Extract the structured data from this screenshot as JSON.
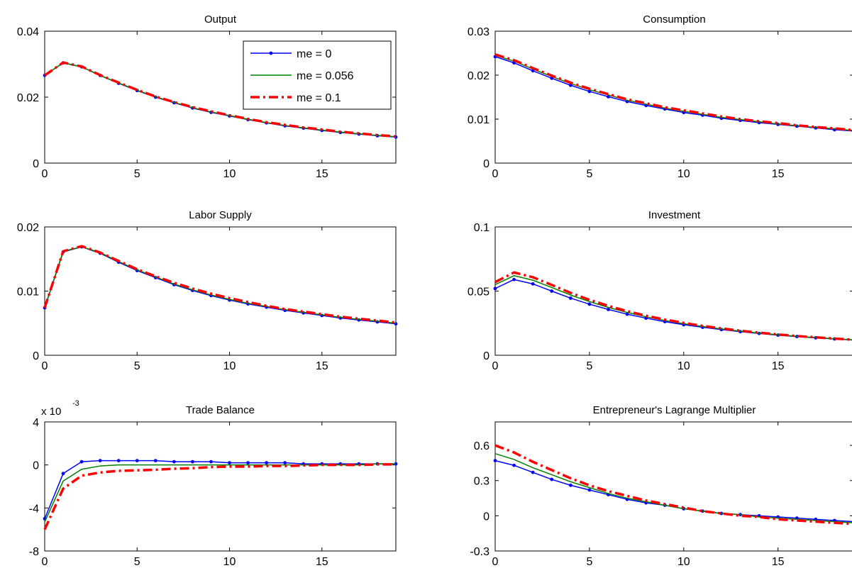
{
  "chart_data": [
    {
      "type": "line",
      "title": "Output",
      "xlabel": "",
      "ylabel": "",
      "xlim": [
        0,
        19
      ],
      "ylim": [
        0,
        0.04
      ],
      "xticks": [
        0,
        5,
        10,
        15
      ],
      "xtick_labels": [
        "0",
        "5",
        "10",
        "15"
      ],
      "yticks": [
        0,
        0.02,
        0.04
      ],
      "ytick_labels": [
        "0",
        "0.02",
        "0.04"
      ],
      "legend": "top-right",
      "x": [
        0,
        1,
        2,
        3,
        4,
        5,
        6,
        7,
        8,
        9,
        10,
        11,
        12,
        13,
        14,
        15,
        16,
        17,
        18,
        19
      ],
      "series": [
        {
          "name": "me = 0",
          "color": "#0000ff",
          "values": [
            0.0266,
            0.0304,
            0.0292,
            0.0266,
            0.0242,
            0.022,
            0.02,
            0.0183,
            0.0167,
            0.0154,
            0.0143,
            0.0132,
            0.0122,
            0.0113,
            0.0106,
            0.0099,
            0.0093,
            0.0088,
            0.0083,
            0.0079
          ]
        },
        {
          "name": "me = 0.056",
          "color": "#008000",
          "values": [
            0.0266,
            0.0304,
            0.0292,
            0.0266,
            0.0243,
            0.0221,
            0.0201,
            0.0184,
            0.0168,
            0.0155,
            0.0144,
            0.0133,
            0.0123,
            0.0114,
            0.0107,
            0.01,
            0.0094,
            0.0089,
            0.0084,
            0.008
          ]
        },
        {
          "name": "me = 0.1",
          "color": "#ff0000",
          "values": [
            0.0266,
            0.0305,
            0.0293,
            0.0267,
            0.0244,
            0.0222,
            0.0202,
            0.0185,
            0.017,
            0.0157,
            0.0145,
            0.0134,
            0.0124,
            0.0116,
            0.0108,
            0.0102,
            0.0095,
            0.009,
            0.0085,
            0.0081
          ]
        }
      ]
    },
    {
      "type": "line",
      "title": "Consumption",
      "xlabel": "",
      "ylabel": "",
      "xlim": [
        0,
        19
      ],
      "ylim": [
        0,
        0.03
      ],
      "xticks": [
        0,
        5,
        10,
        15
      ],
      "xtick_labels": [
        "0",
        "5",
        "10",
        "15"
      ],
      "yticks": [
        0,
        0.01,
        0.02,
        0.03
      ],
      "ytick_labels": [
        "0",
        "0.01",
        "0.02",
        "0.03"
      ],
      "x": [
        0,
        1,
        2,
        3,
        4,
        5,
        6,
        7,
        8,
        9,
        10,
        11,
        12,
        13,
        14,
        15,
        16,
        17,
        18,
        19
      ],
      "series": [
        {
          "color": "#0000ff",
          "values": [
            0.0242,
            0.0228,
            0.021,
            0.0193,
            0.0177,
            0.0163,
            0.0151,
            0.014,
            0.0131,
            0.0123,
            0.0115,
            0.0109,
            0.0102,
            0.0097,
            0.0092,
            0.0088,
            0.0084,
            0.008,
            0.0076,
            0.0073
          ]
        },
        {
          "color": "#008000",
          "values": [
            0.0245,
            0.0232,
            0.0214,
            0.0197,
            0.0181,
            0.0167,
            0.0155,
            0.0143,
            0.0134,
            0.0125,
            0.0118,
            0.0111,
            0.0104,
            0.0099,
            0.0094,
            0.0089,
            0.0085,
            0.0081,
            0.0078,
            0.0074
          ]
        },
        {
          "color": "#ff0000",
          "values": [
            0.0247,
            0.0234,
            0.0216,
            0.0199,
            0.0183,
            0.0169,
            0.0157,
            0.0145,
            0.0136,
            0.0127,
            0.012,
            0.0113,
            0.0106,
            0.01,
            0.0095,
            0.0091,
            0.0086,
            0.0082,
            0.0079,
            0.0075
          ]
        }
      ]
    },
    {
      "type": "line",
      "title": "Labor Supply",
      "xlabel": "",
      "ylabel": "",
      "xlim": [
        0,
        19
      ],
      "ylim": [
        0,
        0.02
      ],
      "xticks": [
        0,
        5,
        10,
        15
      ],
      "xtick_labels": [
        "0",
        "5",
        "10",
        "15"
      ],
      "yticks": [
        0,
        0.01,
        0.02
      ],
      "ytick_labels": [
        "0",
        "0.01",
        "0.02"
      ],
      "x": [
        0,
        1,
        2,
        3,
        4,
        5,
        6,
        7,
        8,
        9,
        10,
        11,
        12,
        13,
        14,
        15,
        16,
        17,
        18,
        19
      ],
      "series": [
        {
          "color": "#0000ff",
          "values": [
            0.0074,
            0.0161,
            0.0169,
            0.0159,
            0.0145,
            0.0132,
            0.0121,
            0.011,
            0.0101,
            0.0093,
            0.0086,
            0.008,
            0.0075,
            0.007,
            0.0066,
            0.0062,
            0.0058,
            0.0055,
            0.0052,
            0.0049
          ]
        },
        {
          "color": "#008000",
          "values": [
            0.0074,
            0.0162,
            0.0169,
            0.016,
            0.0146,
            0.0133,
            0.0122,
            0.0111,
            0.0102,
            0.0094,
            0.0087,
            0.0081,
            0.0076,
            0.0071,
            0.0067,
            0.0063,
            0.0059,
            0.0056,
            0.0053,
            0.005
          ]
        },
        {
          "color": "#ff0000",
          "values": [
            0.0074,
            0.0162,
            0.017,
            0.016,
            0.0147,
            0.0134,
            0.0123,
            0.0113,
            0.0104,
            0.0096,
            0.0089,
            0.0083,
            0.0077,
            0.0072,
            0.0068,
            0.0064,
            0.006,
            0.0057,
            0.0054,
            0.0051
          ]
        }
      ]
    },
    {
      "type": "line",
      "title": "Investment",
      "xlabel": "",
      "ylabel": "",
      "xlim": [
        0,
        19
      ],
      "ylim": [
        0,
        0.1
      ],
      "xticks": [
        0,
        5,
        10,
        15
      ],
      "xtick_labels": [
        "0",
        "5",
        "10",
        "15"
      ],
      "yticks": [
        0,
        0.05,
        0.1
      ],
      "ytick_labels": [
        "0",
        "0.05",
        "0.1"
      ],
      "x": [
        0,
        1,
        2,
        3,
        4,
        5,
        6,
        7,
        8,
        9,
        10,
        11,
        12,
        13,
        14,
        15,
        16,
        17,
        18,
        19
      ],
      "series": [
        {
          "color": "#0000ff",
          "values": [
            0.052,
            0.059,
            0.0556,
            0.05,
            0.0445,
            0.0398,
            0.0357,
            0.032,
            0.0289,
            0.0262,
            0.0238,
            0.0218,
            0.02,
            0.0184,
            0.017,
            0.0157,
            0.0146,
            0.0136,
            0.0127,
            0.0119
          ]
        },
        {
          "color": "#008000",
          "values": [
            0.055,
            0.062,
            0.0585,
            0.0528,
            0.0469,
            0.0418,
            0.0373,
            0.0334,
            0.03,
            0.0271,
            0.0246,
            0.0224,
            0.0205,
            0.0188,
            0.0173,
            0.016,
            0.0148,
            0.0138,
            0.0129,
            0.012
          ]
        },
        {
          "color": "#ff0000",
          "values": [
            0.057,
            0.0645,
            0.0608,
            0.0548,
            0.0486,
            0.0432,
            0.0385,
            0.0344,
            0.0308,
            0.0278,
            0.0252,
            0.0229,
            0.0209,
            0.0191,
            0.0176,
            0.0162,
            0.015,
            0.014,
            0.013,
            0.0121
          ]
        }
      ]
    },
    {
      "type": "line",
      "title": "Trade Balance",
      "axis_exponent": "x 10",
      "axis_exponent_power": "-3",
      "xlabel": "",
      "ylabel": "",
      "xlim": [
        0,
        19
      ],
      "ylim": [
        -8,
        4
      ],
      "xticks": [
        0,
        5,
        10,
        15
      ],
      "xtick_labels": [
        "0",
        "5",
        "10",
        "15"
      ],
      "yticks": [
        -8,
        -4,
        0,
        4
      ],
      "ytick_labels": [
        "-8",
        "-4",
        "0",
        "4"
      ],
      "x": [
        0,
        1,
        2,
        3,
        4,
        5,
        6,
        7,
        8,
        9,
        10,
        11,
        12,
        13,
        14,
        15,
        16,
        17,
        18,
        19
      ],
      "series": [
        {
          "color": "#0000ff",
          "values": [
            -5.0,
            -0.8,
            0.3,
            0.4,
            0.4,
            0.4,
            0.4,
            0.3,
            0.3,
            0.3,
            0.2,
            0.2,
            0.2,
            0.2,
            0.1,
            0.1,
            0.1,
            0.1,
            0.1,
            0.1
          ]
        },
        {
          "color": "#008000",
          "values": [
            -5.3,
            -1.5,
            -0.4,
            -0.1,
            0.0,
            0.0,
            0.0,
            0.0,
            0.0,
            0.0,
            0.0,
            0.0,
            0.0,
            0.0,
            0.0,
            0.0,
            0.0,
            0.0,
            0.1,
            0.1
          ]
        },
        {
          "color": "#ff0000",
          "values": [
            -6.0,
            -2.2,
            -1.0,
            -0.7,
            -0.55,
            -0.5,
            -0.45,
            -0.35,
            -0.3,
            -0.2,
            -0.15,
            -0.15,
            -0.1,
            -0.1,
            -0.05,
            0.0,
            0.0,
            0.0,
            0.05,
            0.05
          ]
        }
      ]
    },
    {
      "type": "line",
      "title": "Entrepreneur's Lagrange Multiplier",
      "xlabel": "",
      "ylabel": "",
      "xlim": [
        0,
        19
      ],
      "ylim": [
        -0.3,
        0.8
      ],
      "xticks": [
        0,
        5,
        10,
        15
      ],
      "xtick_labels": [
        "0",
        "5",
        "10",
        "15"
      ],
      "yticks": [
        -0.3,
        0,
        0.3,
        0.6
      ],
      "ytick_labels": [
        "-0.3",
        "0",
        "0.3",
        "0.6"
      ],
      "x": [
        0,
        1,
        2,
        3,
        4,
        5,
        6,
        7,
        8,
        9,
        10,
        11,
        12,
        13,
        14,
        15,
        16,
        17,
        18,
        19
      ],
      "series": [
        {
          "color": "#0000ff",
          "values": [
            0.47,
            0.43,
            0.37,
            0.31,
            0.26,
            0.22,
            0.18,
            0.14,
            0.11,
            0.09,
            0.06,
            0.04,
            0.02,
            0.01,
            0.0,
            -0.01,
            -0.02,
            -0.03,
            -0.04,
            -0.05
          ]
        },
        {
          "color": "#008000",
          "values": [
            0.53,
            0.48,
            0.41,
            0.35,
            0.29,
            0.24,
            0.19,
            0.15,
            0.12,
            0.09,
            0.06,
            0.04,
            0.02,
            0.01,
            -0.01,
            -0.02,
            -0.03,
            -0.04,
            -0.05,
            -0.06
          ]
        },
        {
          "color": "#ff0000",
          "values": [
            0.6,
            0.54,
            0.46,
            0.39,
            0.32,
            0.26,
            0.21,
            0.17,
            0.13,
            0.1,
            0.07,
            0.04,
            0.02,
            0.0,
            -0.01,
            -0.03,
            -0.04,
            -0.05,
            -0.06,
            -0.07
          ]
        }
      ]
    }
  ]
}
